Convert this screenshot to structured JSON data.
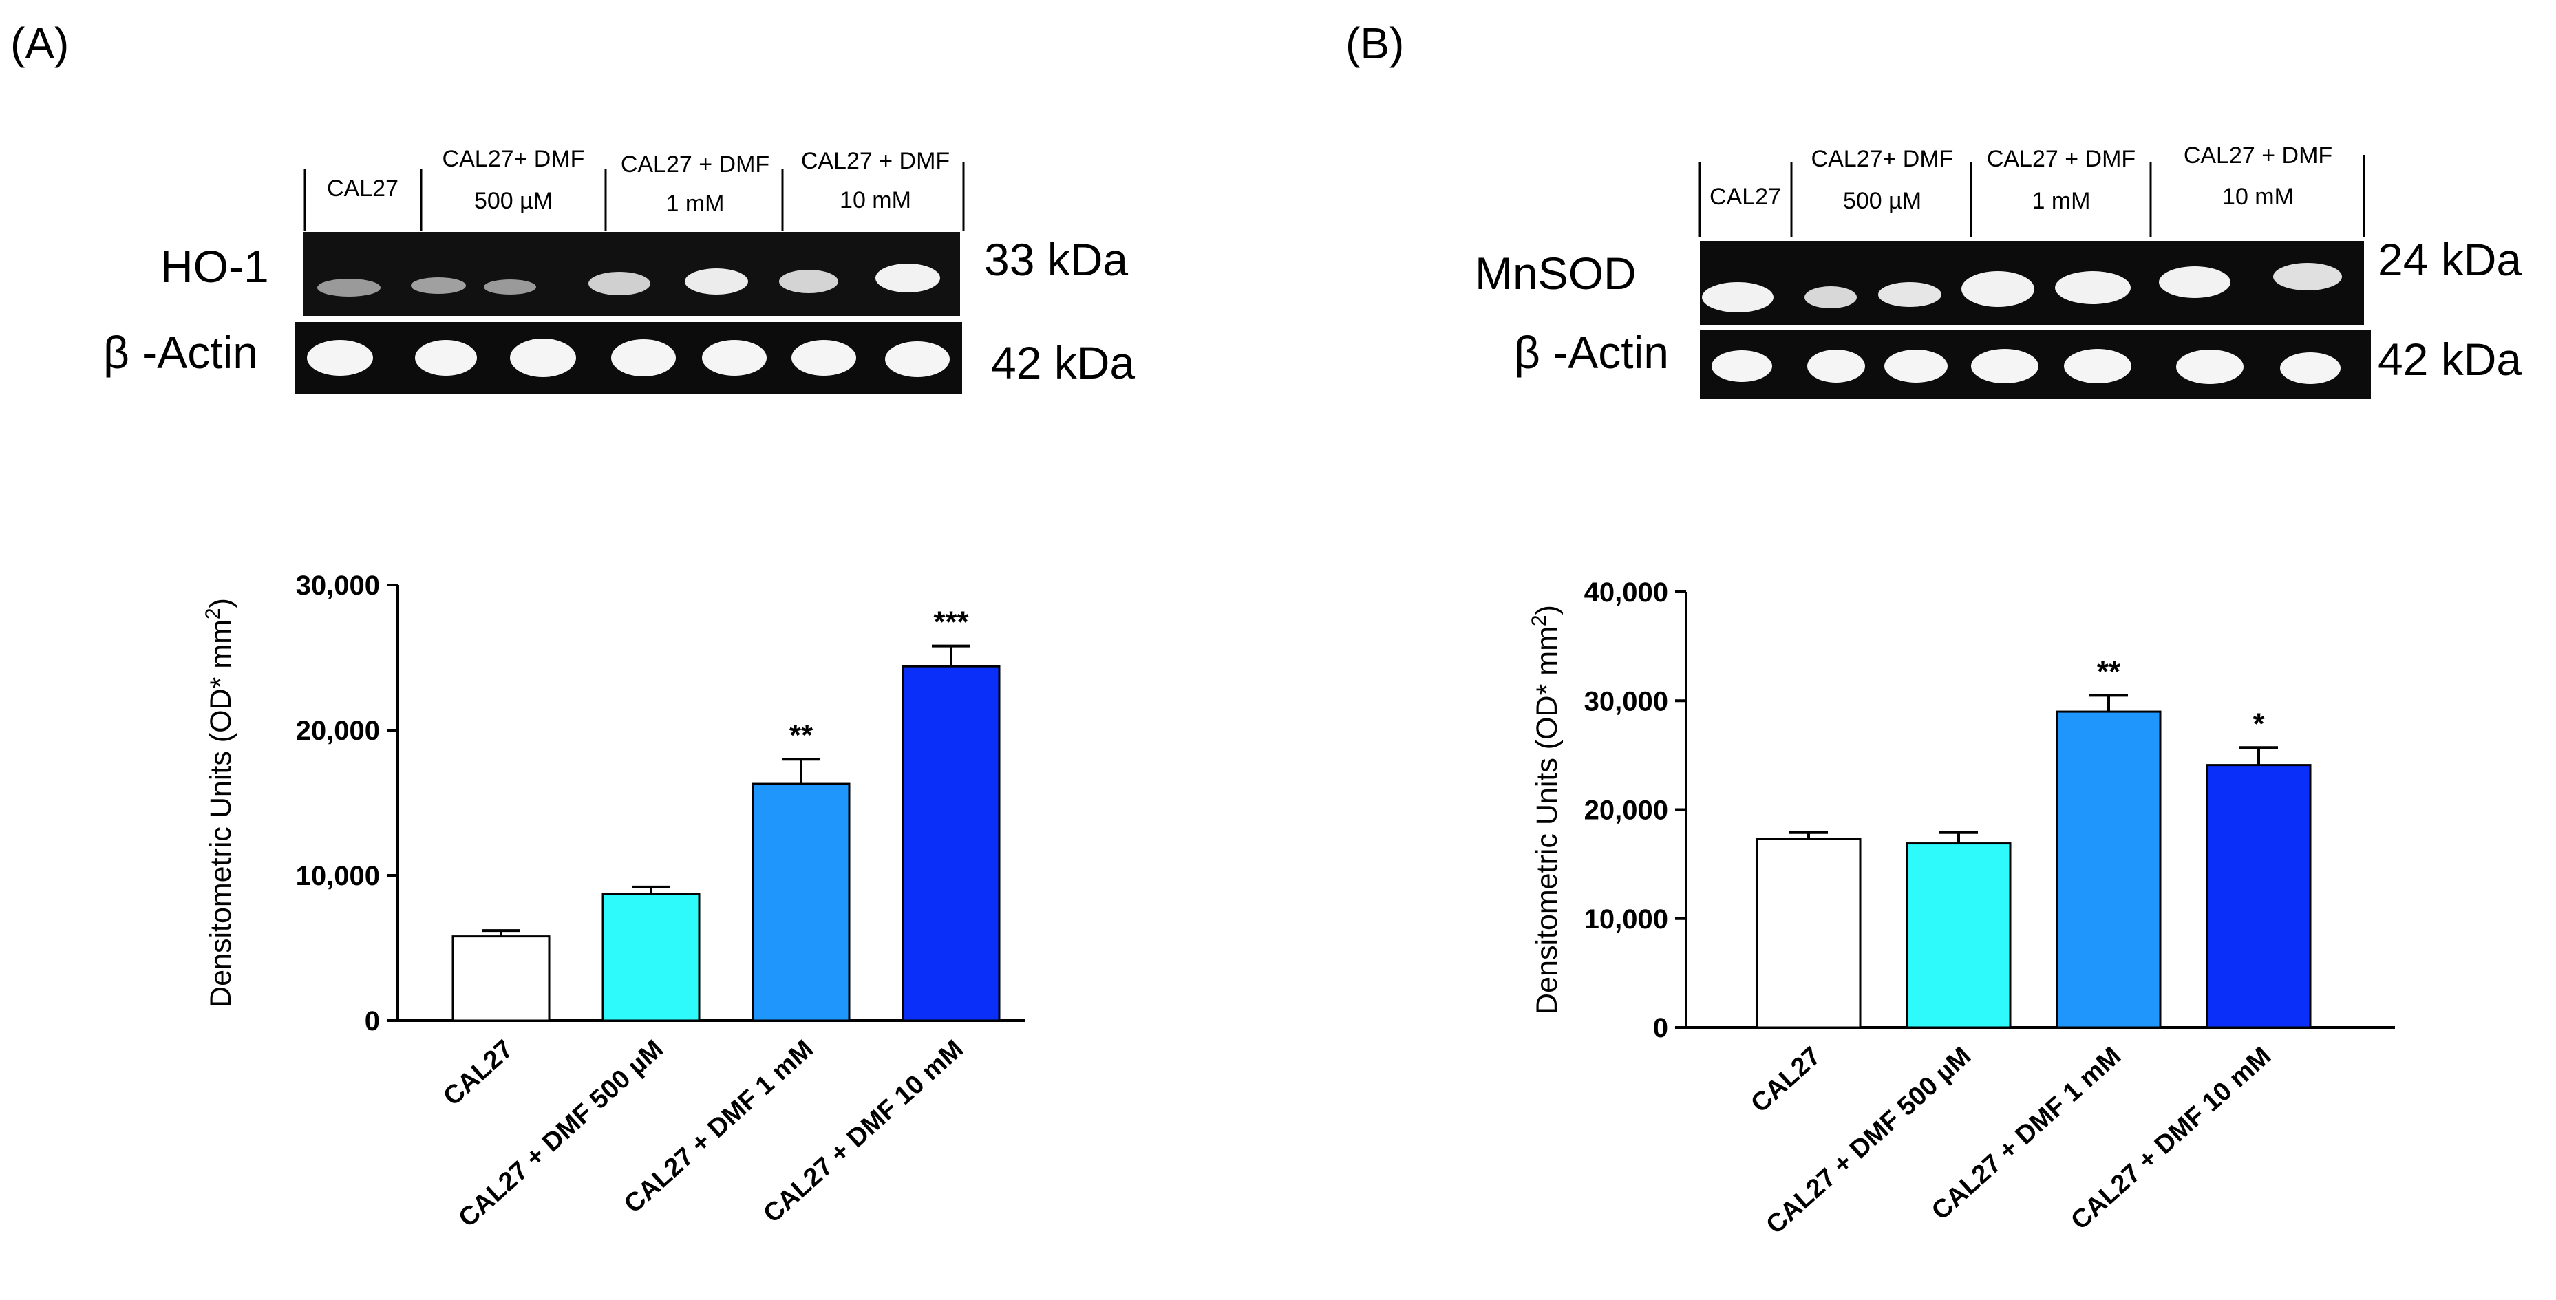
{
  "panels": [
    {
      "letter": "(A)",
      "blot": {
        "lanes": [
          "CAL27",
          "CAL27+ DMF",
          "500 µM",
          "CAL27 + DMF",
          "1 mM",
          "CAL27 + DMF",
          "10 mM"
        ],
        "rows": [
          {
            "protein": "HO-1",
            "kda": "33 kDa"
          },
          {
            "protein": "β -Actin",
            "kda": "42 kDa"
          }
        ]
      }
    },
    {
      "letter": "(B)",
      "blot": {
        "lanes": [
          "CAL27",
          "CAL27+ DMF",
          "500 µM",
          "CAL27 + DMF",
          "1 mM",
          "CAL27 + DMF",
          "10 mM"
        ],
        "rows": [
          {
            "protein": "MnSOD",
            "kda": "24  kDa"
          },
          {
            "protein": "β -Actin",
            "kda": "42  kDa"
          }
        ]
      }
    }
  ],
  "chart_data": [
    {
      "type": "bar",
      "title": "",
      "categories": [
        "CAL27",
        "CAL27 + DMF 500 µM",
        "CAL27 + DMF 1 mM",
        "CAL27 + DMF 10 mM"
      ],
      "values": [
        5800,
        8700,
        16300,
        24400
      ],
      "errors": [
        400,
        500,
        1700,
        1400
      ],
      "significance": [
        "",
        "",
        "**",
        "***"
      ],
      "colors": [
        "#ffffff",
        "#2ef9fb",
        "#1e96fb",
        "#0a2ff9"
      ],
      "xlabel": "",
      "ylabel": "Densitometric Units (OD* mm²)",
      "ylim": [
        0,
        30000
      ],
      "yticks": [
        0,
        10000,
        20000,
        30000
      ],
      "ytick_labels": [
        "0",
        "10,000",
        "20,000",
        "30,000"
      ]
    },
    {
      "type": "bar",
      "title": "",
      "categories": [
        "CAL27",
        "CAL27 + DMF 500 µM",
        "CAL27 + DMF 1 mM",
        "CAL27 + DMF 10 mM"
      ],
      "values": [
        17300,
        16900,
        29000,
        24100
      ],
      "errors": [
        600,
        1000,
        1500,
        1600
      ],
      "significance": [
        "",
        "",
        "**",
        "*"
      ],
      "colors": [
        "#ffffff",
        "#2ef9fb",
        "#1e96fb",
        "#0a2ff9"
      ],
      "xlabel": "",
      "ylabel": "Densitometric Units (OD* mm²)",
      "ylim": [
        0,
        40000
      ],
      "yticks": [
        0,
        10000,
        20000,
        30000,
        40000
      ],
      "ytick_labels": [
        "0",
        "10,000",
        "20,000",
        "30,000",
        "40,000"
      ]
    }
  ]
}
